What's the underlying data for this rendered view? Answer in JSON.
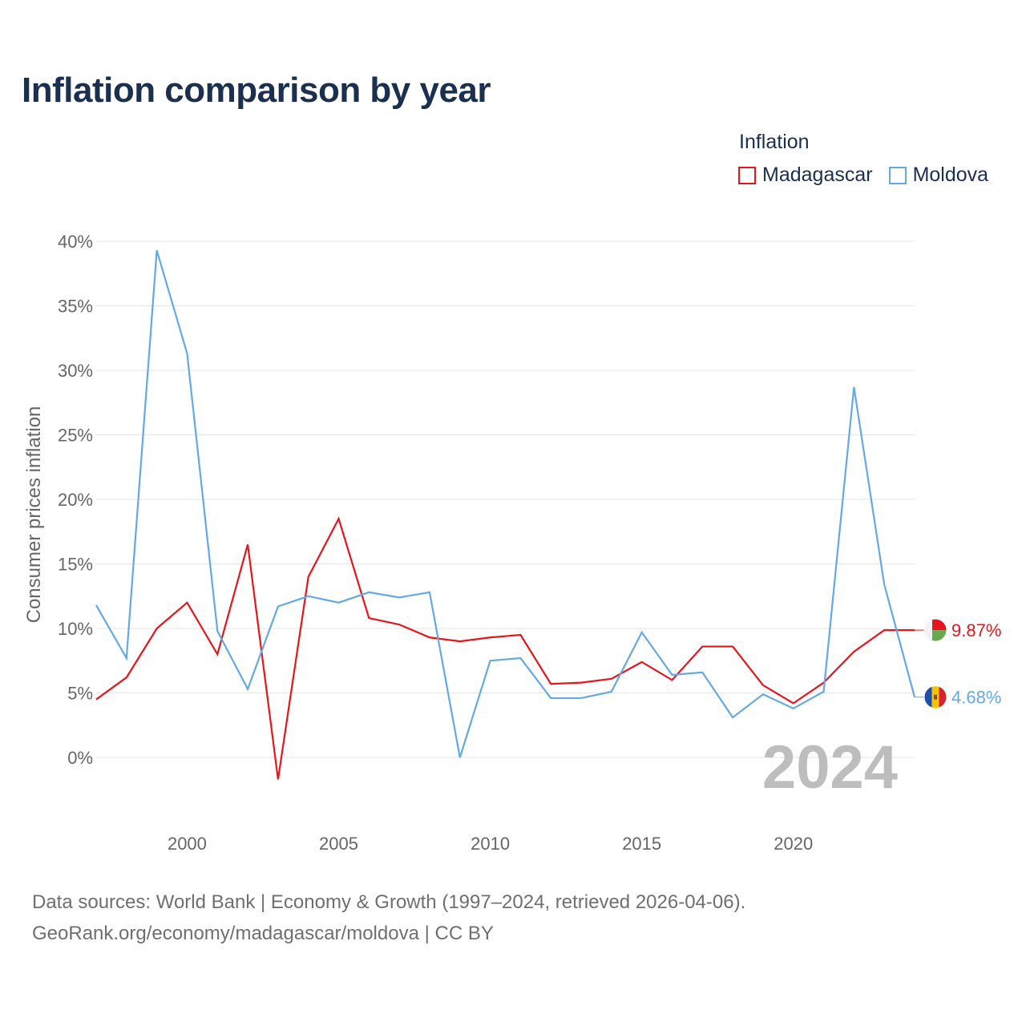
{
  "title": "Inflation comparison by year",
  "legend": {
    "title": "Inflation",
    "items": [
      {
        "name": "Madagascar",
        "color": "#e8141c"
      },
      {
        "name": "Moldova",
        "color": "#64a9e4"
      }
    ]
  },
  "footer": {
    "line1": "Data sources: World Bank | Economy & Growth (1997–2024, retrieved 2026-04-06).",
    "line2": "GeoRank.org/economy/madagascar/moldova | CC BY"
  },
  "chart_data": {
    "type": "line",
    "title": "Inflation comparison by year",
    "ylabel": "Consumer prices inflation",
    "xlabel": "",
    "xlim": [
      1997,
      2024
    ],
    "ylim": [
      -5,
      40
    ],
    "x_ticks": [
      2000,
      2005,
      2010,
      2015,
      2020
    ],
    "x_tick_labels": [
      "2000",
      "2005",
      "2010",
      "2015",
      "2020"
    ],
    "y_ticks": [
      0,
      5,
      10,
      15,
      20,
      25,
      30,
      35,
      40
    ],
    "y_tick_labels": [
      "0%",
      "5%",
      "10%",
      "15%",
      "20%",
      "25%",
      "30%",
      "35%",
      "40%"
    ],
    "grid": true,
    "legend_position": "top-right",
    "year_watermark": "2024",
    "x": [
      1997,
      1998,
      1999,
      2000,
      2001,
      2002,
      2003,
      2004,
      2005,
      2006,
      2007,
      2008,
      2009,
      2010,
      2011,
      2012,
      2013,
      2014,
      2015,
      2016,
      2017,
      2018,
      2019,
      2020,
      2021,
      2022,
      2023,
      2024
    ],
    "series": [
      {
        "name": "Madagascar",
        "color": "#e8141c",
        "end_label": "9.87%",
        "values": [
          4.5,
          6.2,
          10.0,
          12.0,
          8.0,
          16.5,
          -1.7,
          14.0,
          18.5,
          10.8,
          10.3,
          9.3,
          9.0,
          9.3,
          9.5,
          5.7,
          5.8,
          6.1,
          7.4,
          6.0,
          8.6,
          8.6,
          5.6,
          4.2,
          5.8,
          8.2,
          9.87,
          9.87
        ]
      },
      {
        "name": "Moldova",
        "color": "#64a9e4",
        "end_label": "4.68%",
        "values": [
          11.8,
          7.7,
          39.3,
          31.3,
          9.8,
          5.3,
          11.7,
          12.5,
          12.0,
          12.8,
          12.4,
          12.8,
          0.0,
          7.5,
          7.7,
          4.6,
          4.6,
          5.1,
          9.7,
          6.4,
          6.6,
          3.1,
          4.9,
          3.8,
          5.1,
          28.7,
          13.4,
          4.68
        ]
      }
    ]
  }
}
